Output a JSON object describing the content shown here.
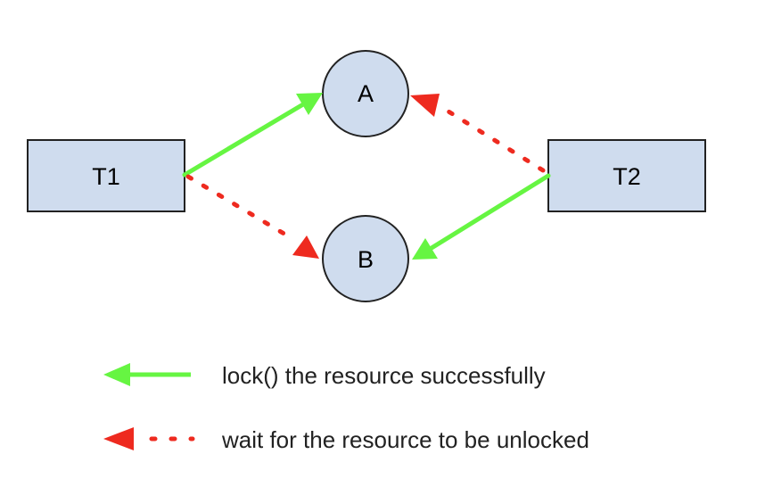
{
  "nodes": {
    "t1": {
      "label": "T1"
    },
    "t2": {
      "label": "T2"
    },
    "a": {
      "label": "A"
    },
    "b": {
      "label": "B"
    }
  },
  "legend": {
    "lock": {
      "label": "lock() the resource successfully"
    },
    "wait": {
      "label": "wait for the resource to be unlocked"
    }
  },
  "colors": {
    "node_fill": "#cfdcee",
    "node_stroke": "#222222",
    "lock_arrow": "#66f542",
    "wait_arrow": "#ee2a1f",
    "text": "#000000"
  }
}
